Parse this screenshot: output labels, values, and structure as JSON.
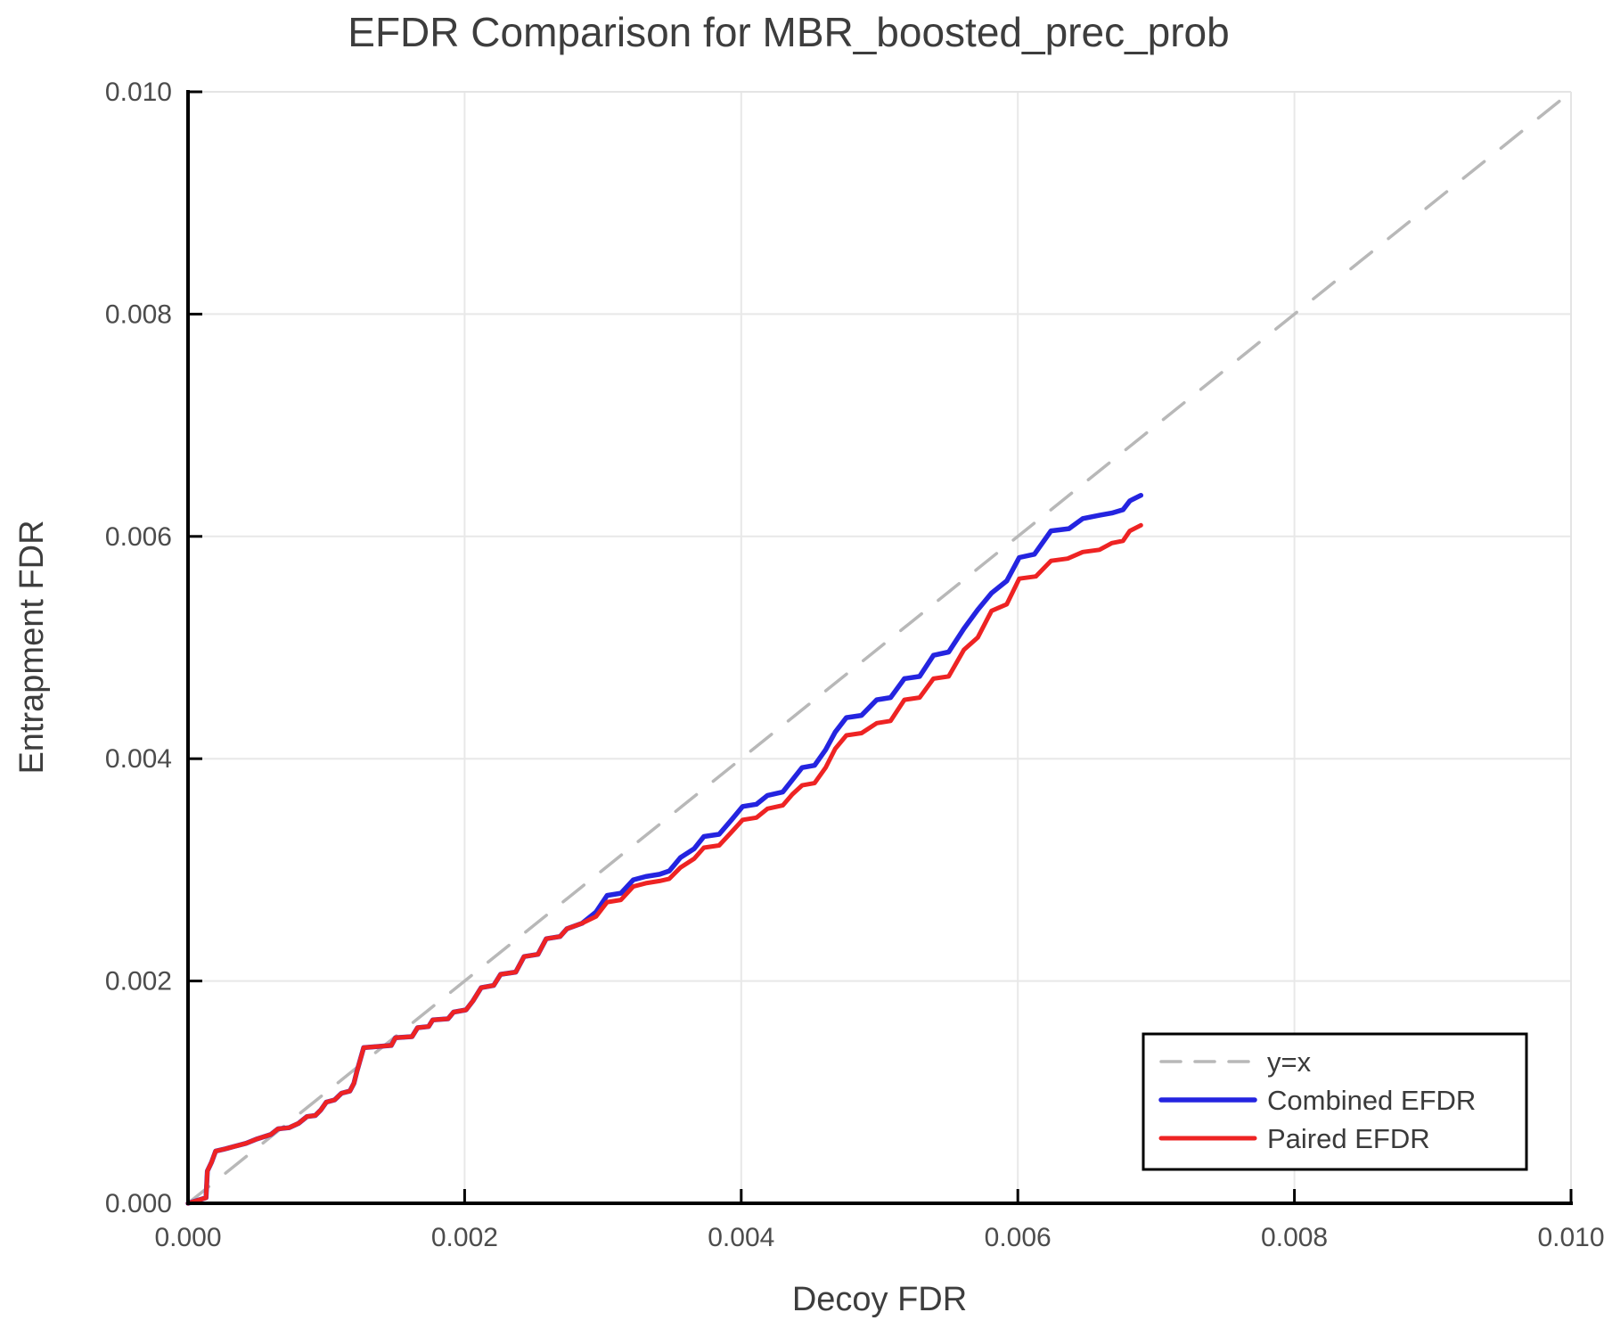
{
  "figure": {
    "title": "EFDR Comparison for MBR_boosted_prec_prob",
    "xlabel": "Decoy FDR",
    "ylabel": "Entrapment FDR"
  },
  "colors": {
    "combined": "#2424e0",
    "paired": "#ee2323",
    "reference": "#b8b8b8",
    "grid": "#e8e8e8",
    "frame_light": "#e4e4e4",
    "spine": "#000000",
    "title_text": "#3d3d3d",
    "tick_text": "#4c4c4c",
    "legend_border": "#000000",
    "background": "#ffffff"
  },
  "legend": {
    "entries": [
      {
        "label": "y=x",
        "color": "#b8b8b8",
        "dashed": true,
        "width": 3.5
      },
      {
        "label": "Combined EFDR",
        "color": "#2424e0",
        "dashed": false,
        "width": 5.5
      },
      {
        "label": "Paired EFDR",
        "color": "#ee2323",
        "dashed": false,
        "width": 5
      }
    ]
  },
  "chart_data": {
    "type": "line",
    "title": "EFDR Comparison for MBR_boosted_prec_prob",
    "xlabel": "Decoy FDR",
    "ylabel": "Entrapment FDR",
    "xlim": [
      0.0,
      0.01
    ],
    "ylim": [
      0.0,
      0.01
    ],
    "grid": true,
    "legend_position": "lower right",
    "x_ticks": {
      "values": [
        0.0,
        0.002,
        0.004,
        0.006,
        0.008,
        0.01
      ],
      "labels": [
        "0.000",
        "0.002",
        "0.004",
        "0.006",
        "0.008",
        "0.010"
      ]
    },
    "y_ticks": {
      "values": [
        0.0,
        0.002,
        0.004,
        0.006,
        0.008,
        0.01
      ],
      "labels": [
        "0.000",
        "0.002",
        "0.004",
        "0.006",
        "0.008",
        "0.010"
      ]
    },
    "series": [
      {
        "name": "y=x",
        "style": "dashed",
        "color": "#b8b8b8",
        "points": [
          [
            0.0,
            0.0
          ],
          [
            0.01,
            0.01
          ]
        ]
      },
      {
        "name": "Combined EFDR",
        "style": "solid",
        "color": "#2424e0",
        "points": [
          [
            0.0,
            0.0
          ],
          [
            0.00013,
            5e-05
          ],
          [
            0.00014,
            0.00029
          ],
          [
            0.00017,
            0.00037
          ],
          [
            0.0002,
            0.00047
          ],
          [
            0.00027,
            0.00049
          ],
          [
            0.00033,
            0.00051
          ],
          [
            0.00042,
            0.00054
          ],
          [
            0.0005,
            0.00058
          ],
          [
            0.0006,
            0.00062
          ],
          [
            0.00065,
            0.00067
          ],
          [
            0.00073,
            0.00068
          ],
          [
            0.0008,
            0.00072
          ],
          [
            0.00086,
            0.00078
          ],
          [
            0.00092,
            0.00079
          ],
          [
            0.00096,
            0.00084
          ],
          [
            0.001,
            0.00091
          ],
          [
            0.00106,
            0.00093
          ],
          [
            0.00111,
            0.00099
          ],
          [
            0.00117,
            0.00101
          ],
          [
            0.0012,
            0.00108
          ],
          [
            0.00122,
            0.00118
          ],
          [
            0.00127,
            0.0014
          ],
          [
            0.00147,
            0.00142
          ],
          [
            0.0015,
            0.00149
          ],
          [
            0.00162,
            0.0015
          ],
          [
            0.00166,
            0.00158
          ],
          [
            0.00174,
            0.00159
          ],
          [
            0.00177,
            0.00165
          ],
          [
            0.00188,
            0.00166
          ],
          [
            0.00192,
            0.00172
          ],
          [
            0.00201,
            0.00174
          ],
          [
            0.00206,
            0.00182
          ],
          [
            0.00212,
            0.00194
          ],
          [
            0.00221,
            0.00196
          ],
          [
            0.00226,
            0.00206
          ],
          [
            0.00237,
            0.00208
          ],
          [
            0.00243,
            0.00222
          ],
          [
            0.00253,
            0.00224
          ],
          [
            0.00259,
            0.00238
          ],
          [
            0.00269,
            0.0024
          ],
          [
            0.00274,
            0.00247
          ],
          [
            0.00285,
            0.00252
          ],
          [
            0.00295,
            0.00262
          ],
          [
            0.00303,
            0.00277
          ],
          [
            0.00313,
            0.00279
          ],
          [
            0.00322,
            0.00291
          ],
          [
            0.00331,
            0.00294
          ],
          [
            0.00341,
            0.00296
          ],
          [
            0.00348,
            0.00299
          ],
          [
            0.00356,
            0.00311
          ],
          [
            0.00366,
            0.00319
          ],
          [
            0.00373,
            0.0033
          ],
          [
            0.00384,
            0.00332
          ],
          [
            0.00393,
            0.00345
          ],
          [
            0.00401,
            0.00357
          ],
          [
            0.00411,
            0.00359
          ],
          [
            0.00419,
            0.00367
          ],
          [
            0.0043,
            0.0037
          ],
          [
            0.00437,
            0.00381
          ],
          [
            0.00444,
            0.00392
          ],
          [
            0.00453,
            0.00394
          ],
          [
            0.00461,
            0.00408
          ],
          [
            0.00468,
            0.00424
          ],
          [
            0.00476,
            0.00437
          ],
          [
            0.00487,
            0.00439
          ],
          [
            0.00498,
            0.00453
          ],
          [
            0.00508,
            0.00455
          ],
          [
            0.00518,
            0.00472
          ],
          [
            0.00529,
            0.00474
          ],
          [
            0.00539,
            0.00493
          ],
          [
            0.0055,
            0.00496
          ],
          [
            0.00561,
            0.00517
          ],
          [
            0.00571,
            0.00534
          ],
          [
            0.00581,
            0.00549
          ],
          [
            0.00592,
            0.0056
          ],
          [
            0.00601,
            0.00581
          ],
          [
            0.00612,
            0.00584
          ],
          [
            0.00624,
            0.00605
          ],
          [
            0.00637,
            0.00607
          ],
          [
            0.00647,
            0.00616
          ],
          [
            0.00659,
            0.00619
          ],
          [
            0.00668,
            0.00621
          ],
          [
            0.00676,
            0.00624
          ],
          [
            0.00681,
            0.00632
          ],
          [
            0.00689,
            0.00637
          ]
        ]
      },
      {
        "name": "Paired EFDR",
        "style": "solid",
        "color": "#ee2323",
        "points": [
          [
            0.0,
            0.0
          ],
          [
            0.00013,
            5e-05
          ],
          [
            0.00014,
            0.00029
          ],
          [
            0.00017,
            0.00037
          ],
          [
            0.0002,
            0.00047
          ],
          [
            0.00027,
            0.00049
          ],
          [
            0.00033,
            0.00051
          ],
          [
            0.00042,
            0.00054
          ],
          [
            0.0005,
            0.00058
          ],
          [
            0.0006,
            0.00062
          ],
          [
            0.00065,
            0.00067
          ],
          [
            0.00073,
            0.00068
          ],
          [
            0.0008,
            0.00072
          ],
          [
            0.00086,
            0.00078
          ],
          [
            0.00092,
            0.00079
          ],
          [
            0.00096,
            0.00084
          ],
          [
            0.001,
            0.00091
          ],
          [
            0.00106,
            0.00093
          ],
          [
            0.00111,
            0.00099
          ],
          [
            0.00117,
            0.00101
          ],
          [
            0.0012,
            0.00108
          ],
          [
            0.00122,
            0.00118
          ],
          [
            0.00127,
            0.0014
          ],
          [
            0.00147,
            0.00142
          ],
          [
            0.0015,
            0.00149
          ],
          [
            0.00162,
            0.0015
          ],
          [
            0.00166,
            0.00158
          ],
          [
            0.00174,
            0.00159
          ],
          [
            0.00177,
            0.00165
          ],
          [
            0.00188,
            0.00166
          ],
          [
            0.00192,
            0.00172
          ],
          [
            0.00201,
            0.00174
          ],
          [
            0.00206,
            0.00182
          ],
          [
            0.00212,
            0.00194
          ],
          [
            0.00221,
            0.00196
          ],
          [
            0.00226,
            0.00206
          ],
          [
            0.00237,
            0.00208
          ],
          [
            0.00243,
            0.00222
          ],
          [
            0.00253,
            0.00224
          ],
          [
            0.00259,
            0.00238
          ],
          [
            0.00269,
            0.0024
          ],
          [
            0.00274,
            0.00247
          ],
          [
            0.00285,
            0.00252
          ],
          [
            0.00295,
            0.00258
          ],
          [
            0.00303,
            0.00271
          ],
          [
            0.00313,
            0.00273
          ],
          [
            0.00322,
            0.00285
          ],
          [
            0.00331,
            0.00288
          ],
          [
            0.00341,
            0.0029
          ],
          [
            0.00348,
            0.00292
          ],
          [
            0.00356,
            0.00302
          ],
          [
            0.00366,
            0.0031
          ],
          [
            0.00373,
            0.0032
          ],
          [
            0.00384,
            0.00322
          ],
          [
            0.00393,
            0.00334
          ],
          [
            0.00401,
            0.00345
          ],
          [
            0.00411,
            0.00347
          ],
          [
            0.00419,
            0.00355
          ],
          [
            0.0043,
            0.00358
          ],
          [
            0.00437,
            0.00368
          ],
          [
            0.00444,
            0.00376
          ],
          [
            0.00453,
            0.00378
          ],
          [
            0.00461,
            0.00392
          ],
          [
            0.00468,
            0.00409
          ],
          [
            0.00476,
            0.00421
          ],
          [
            0.00487,
            0.00423
          ],
          [
            0.00498,
            0.00432
          ],
          [
            0.00508,
            0.00434
          ],
          [
            0.00518,
            0.00453
          ],
          [
            0.00529,
            0.00455
          ],
          [
            0.00539,
            0.00472
          ],
          [
            0.0055,
            0.00474
          ],
          [
            0.00561,
            0.00498
          ],
          [
            0.00571,
            0.00509
          ],
          [
            0.00581,
            0.00533
          ],
          [
            0.00592,
            0.00539
          ],
          [
            0.00601,
            0.00562
          ],
          [
            0.00613,
            0.00564
          ],
          [
            0.00624,
            0.00578
          ],
          [
            0.00636,
            0.0058
          ],
          [
            0.00647,
            0.00586
          ],
          [
            0.00659,
            0.00588
          ],
          [
            0.00668,
            0.00594
          ],
          [
            0.00676,
            0.00596
          ],
          [
            0.00681,
            0.00605
          ],
          [
            0.00689,
            0.0061
          ]
        ]
      }
    ]
  }
}
